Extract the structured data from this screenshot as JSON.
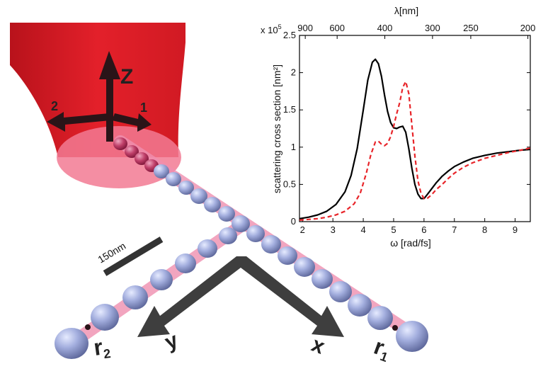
{
  "illustration": {
    "axis_labels": {
      "z": "Z",
      "one": "1",
      "two": "2"
    },
    "scale_bar": "150nm",
    "direction_labels": {
      "x": "x",
      "y": "y"
    },
    "endpoint_labels": {
      "r1_main": "r",
      "r1_sub": "1",
      "r2_main": "r",
      "r2_sub": "2"
    },
    "colors": {
      "beam": "#e3202a",
      "particle": "#9aa6d6",
      "glow": "#f08fb0",
      "arrow": "#3e3e3e"
    }
  },
  "chart_data": {
    "type": "line",
    "xlabel": "ω [rad/fs]",
    "ylabel": "scattering cross section [nm²]",
    "top_axis_label": "λ[nm]",
    "exponent_label": "x 10",
    "exponent_power": "5",
    "xlim": [
      1.9,
      9.5
    ],
    "ylim": [
      0,
      2.5
    ],
    "x_ticks": [
      "2",
      "3",
      "4",
      "5",
      "6",
      "7",
      "8",
      "9"
    ],
    "y_ticks": [
      "0",
      "0.5",
      "1",
      "1.5",
      "2",
      "2.5"
    ],
    "top_ticks": [
      {
        "label": "900",
        "omega": 2.09
      },
      {
        "label": "600",
        "omega": 3.14
      },
      {
        "label": "400",
        "omega": 4.71
      },
      {
        "label": "300",
        "omega": 6.28
      },
      {
        "label": "250",
        "omega": 7.54
      },
      {
        "label": "200",
        "omega": 9.42
      }
    ],
    "grid": false,
    "series": [
      {
        "color": "#000000",
        "dash": "solid",
        "x": [
          1.9,
          2.2,
          2.5,
          2.8,
          3.1,
          3.4,
          3.6,
          3.8,
          4.0,
          4.15,
          4.3,
          4.4,
          4.5,
          4.6,
          4.7,
          4.8,
          4.9,
          5.0,
          5.1,
          5.2,
          5.3,
          5.4,
          5.5,
          5.6,
          5.7,
          5.8,
          5.9,
          6.0,
          6.1,
          6.25,
          6.4,
          6.6,
          6.8,
          7.0,
          7.3,
          7.6,
          8.0,
          8.4,
          8.8,
          9.2,
          9.5
        ],
        "y": [
          0.04,
          0.06,
          0.09,
          0.14,
          0.23,
          0.4,
          0.62,
          0.98,
          1.5,
          1.9,
          2.14,
          2.18,
          2.12,
          1.95,
          1.7,
          1.48,
          1.33,
          1.26,
          1.25,
          1.27,
          1.28,
          1.2,
          0.98,
          0.72,
          0.5,
          0.37,
          0.31,
          0.31,
          0.36,
          0.44,
          0.52,
          0.61,
          0.68,
          0.74,
          0.8,
          0.85,
          0.89,
          0.92,
          0.94,
          0.96,
          0.97
        ]
      },
      {
        "color": "#e8252a",
        "dash": "dashed",
        "x": [
          1.9,
          2.2,
          2.5,
          2.8,
          3.1,
          3.4,
          3.7,
          3.9,
          4.1,
          4.25,
          4.4,
          4.5,
          4.6,
          4.7,
          4.8,
          4.9,
          5.0,
          5.1,
          5.2,
          5.3,
          5.4,
          5.5,
          5.6,
          5.7,
          5.8,
          5.9,
          6.0,
          6.1,
          6.25,
          6.4,
          6.6,
          6.8,
          7.0,
          7.3,
          7.6,
          8.0,
          8.4,
          8.8,
          9.2,
          9.5
        ],
        "y": [
          0.02,
          0.03,
          0.04,
          0.06,
          0.09,
          0.14,
          0.24,
          0.38,
          0.65,
          0.9,
          1.07,
          1.08,
          1.04,
          1.02,
          1.05,
          1.14,
          1.28,
          1.45,
          1.6,
          1.8,
          1.88,
          1.72,
          1.3,
          0.88,
          0.55,
          0.38,
          0.31,
          0.31,
          0.36,
          0.43,
          0.5,
          0.58,
          0.65,
          0.73,
          0.79,
          0.85,
          0.89,
          0.93,
          0.96,
          0.99
        ]
      }
    ]
  }
}
